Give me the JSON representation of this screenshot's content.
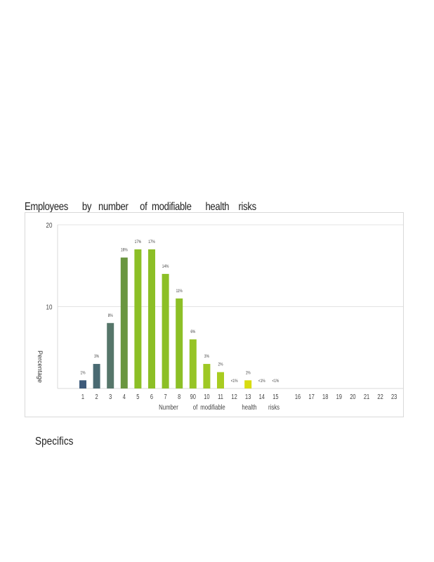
{
  "chart_title": "Employees      by   number     of  modifiable      health    risks",
  "footer_heading": "Specifics",
  "chart_data": {
    "type": "bar",
    "title": "Employees      by   number     of  modifiable      health    risks",
    "ylabel": "Percentage",
    "xlabel_words": [
      "Number",
      "of",
      "modifiable",
      "health",
      "risks"
    ],
    "ylim": [
      0,
      20
    ],
    "yticks": [
      "20",
      "10"
    ],
    "categories": [
      "1",
      "2",
      "3",
      "4",
      "5",
      "6",
      "7",
      "8",
      "90",
      "10",
      "11",
      "12",
      "13",
      "14",
      "15",
      "16",
      "17",
      "18",
      "19",
      "20",
      "21",
      "22",
      "23"
    ],
    "values": [
      1,
      3,
      8,
      16,
      17,
      17,
      14,
      11,
      6,
      3,
      2,
      0,
      1,
      0,
      0,
      0,
      0,
      0,
      0,
      0,
      0,
      0,
      0
    ],
    "data_labels": [
      "1%",
      "3%",
      "8%",
      "16%",
      "17%",
      "17%",
      "14%",
      "11%",
      "6%",
      "3%",
      "2%",
      "<1%",
      "1%",
      "<1%",
      "<1%",
      "",
      "",
      "",
      "",
      "",
      "",
      "",
      ""
    ],
    "colors": [
      "#3d5a7a",
      "#4a6a72",
      "#56766a",
      "#6a9640",
      "#8cbf26",
      "#8cbf26",
      "#8cbf26",
      "#8cbf26",
      "#96c426",
      "#9ec824",
      "#a8cc20",
      "#b8d21a",
      "#d8dc10",
      "#dede10",
      "#e2e010",
      "",
      "",
      "",
      "",
      "",
      "",
      "",
      ""
    ],
    "grid": true
  }
}
